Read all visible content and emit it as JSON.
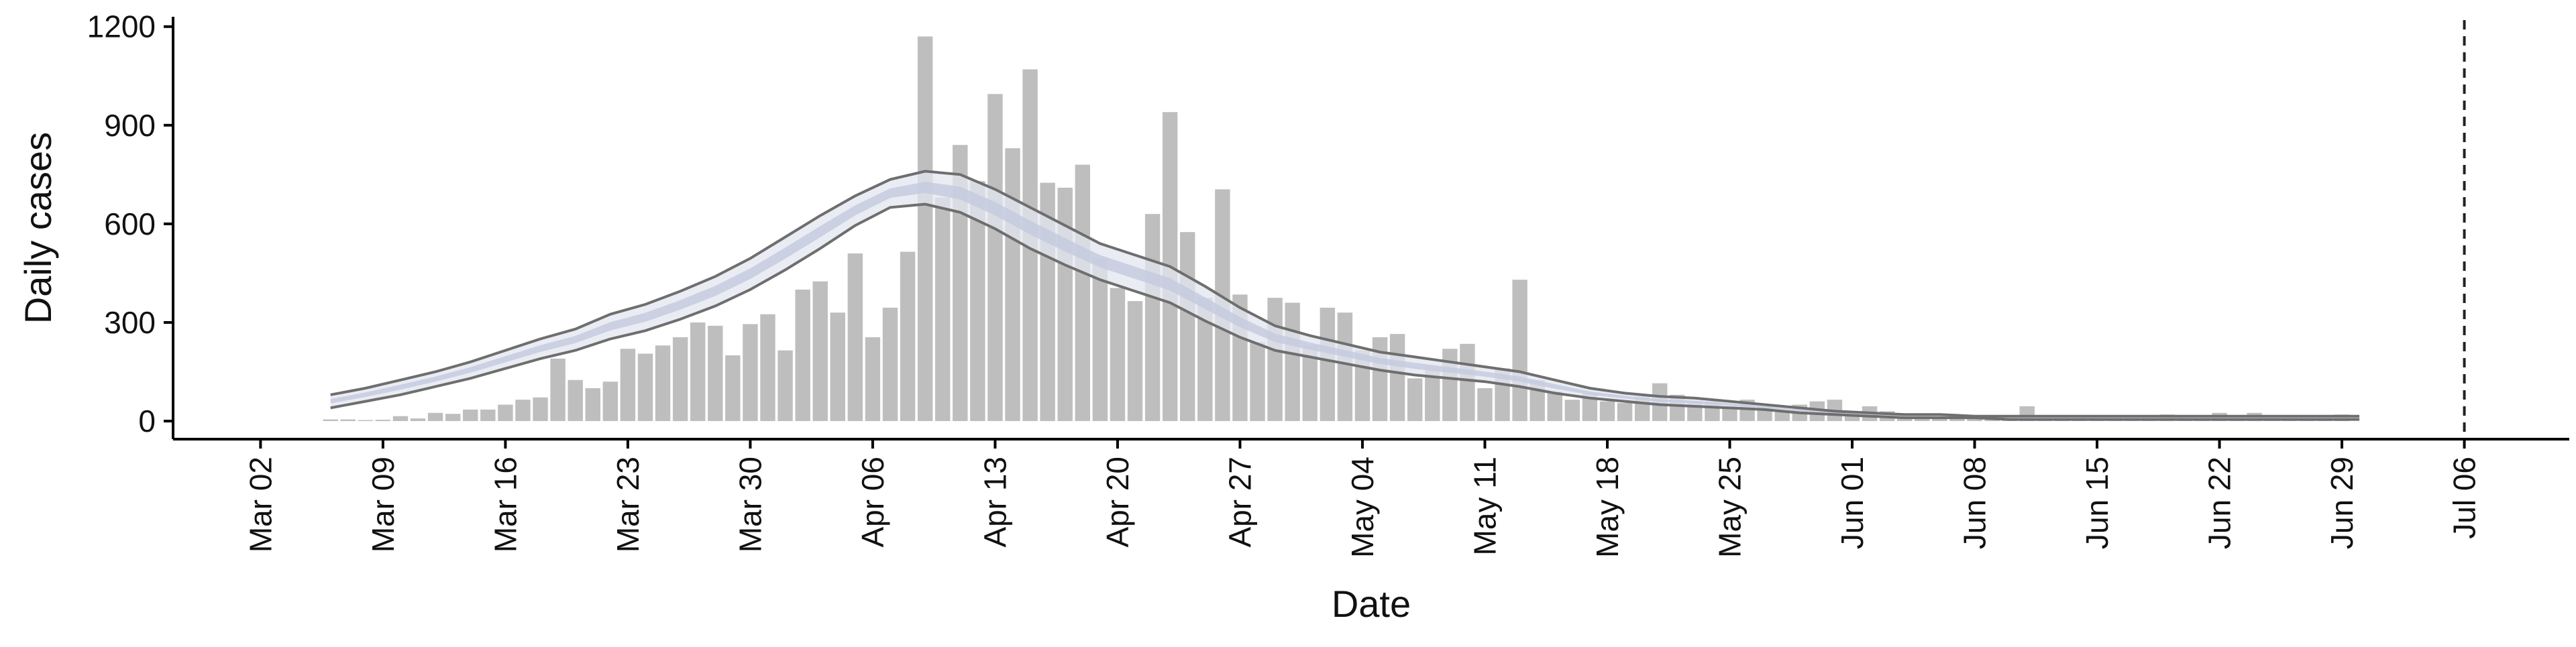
{
  "chart_data": {
    "type": "bar",
    "xlabel": "Date",
    "ylabel": "Daily cases",
    "ylim": [
      -55,
      1230
    ],
    "xlim": [
      "2020-02-26",
      "2020-07-12"
    ],
    "y_ticks": [
      0,
      300,
      600,
      900,
      1200
    ],
    "y_tick_labels": [
      "0",
      "300",
      "600",
      "900",
      "1200"
    ],
    "x_ticks": [
      "2020-03-02",
      "2020-03-09",
      "2020-03-16",
      "2020-03-23",
      "2020-03-30",
      "2020-04-06",
      "2020-04-13",
      "2020-04-20",
      "2020-04-27",
      "2020-05-04",
      "2020-05-11",
      "2020-05-18",
      "2020-05-25",
      "2020-06-01",
      "2020-06-08",
      "2020-06-15",
      "2020-06-22",
      "2020-06-29",
      "2020-07-06"
    ],
    "x_tick_labels": [
      "Mar 02",
      "Mar 09",
      "Mar 16",
      "Mar 23",
      "Mar 30",
      "Apr 06",
      "Apr 13",
      "Apr 20",
      "Apr 27",
      "May 04",
      "May 11",
      "May 18",
      "May 25",
      "Jun 01",
      "Jun 08",
      "Jun 15",
      "Jun 22",
      "Jun 29",
      "Jul 06"
    ],
    "grid": false,
    "colors": {
      "bars": "#bebebe",
      "band_outer": "#e3e6ef",
      "band_inner": "#c3cbde",
      "bound_lines": "#6e6e6e",
      "vline": "#222222",
      "axis": "#000000"
    },
    "vline_date": "2020-07-06",
    "series": [
      {
        "type": "bar",
        "start_date": "2020-03-06",
        "values": [
          5,
          5,
          3,
          4,
          15,
          8,
          25,
          22,
          35,
          35,
          50,
          65,
          72,
          190,
          125,
          100,
          120,
          220,
          205,
          230,
          255,
          300,
          290,
          200,
          295,
          325,
          215,
          400,
          425,
          330,
          510,
          255,
          345,
          515,
          1170,
          680,
          840,
          730,
          995,
          830,
          1070,
          725,
          710,
          780,
          495,
          405,
          365,
          630,
          940,
          575,
          375,
          705,
          385,
          240,
          375,
          360,
          230,
          345,
          330,
          215,
          255,
          265,
          130,
          160,
          220,
          235,
          100,
          160,
          430,
          125,
          90,
          65,
          85,
          60,
          55,
          75,
          115,
          80,
          60,
          60,
          45,
          65,
          45,
          30,
          50,
          60,
          65,
          25,
          45,
          30,
          15,
          20,
          15,
          10,
          10,
          15,
          10,
          45,
          5,
          10,
          10,
          10,
          10,
          15,
          15,
          20,
          10,
          5,
          25,
          5,
          25,
          10,
          5,
          10,
          10,
          20
        ]
      },
      {
        "type": "band",
        "start_date": "2020-03-06",
        "step_days": 2,
        "upper": [
          80,
          100,
          125,
          150,
          180,
          215,
          250,
          280,
          325,
          355,
          395,
          440,
          495,
          560,
          625,
          685,
          735,
          760,
          750,
          705,
          650,
          595,
          540,
          505,
          470,
          410,
          345,
          290,
          260,
          235,
          210,
          195,
          180,
          165,
          150,
          125,
          100,
          85,
          75,
          70,
          60,
          50,
          40,
          30,
          25,
          20,
          20,
          15,
          15,
          15,
          15,
          15,
          15,
          15,
          15,
          15,
          15,
          15,
          15
        ],
        "lower": [
          40,
          60,
          80,
          105,
          130,
          160,
          190,
          215,
          250,
          275,
          310,
          350,
          400,
          460,
          525,
          595,
          650,
          660,
          635,
          585,
          525,
          475,
          430,
          395,
          360,
          305,
          255,
          215,
          195,
          175,
          155,
          140,
          130,
          120,
          105,
          85,
          70,
          60,
          50,
          45,
          40,
          35,
          25,
          20,
          15,
          10,
          10,
          10,
          5,
          5,
          5,
          5,
          5,
          5,
          5,
          5,
          5,
          5,
          5
        ]
      }
    ]
  }
}
